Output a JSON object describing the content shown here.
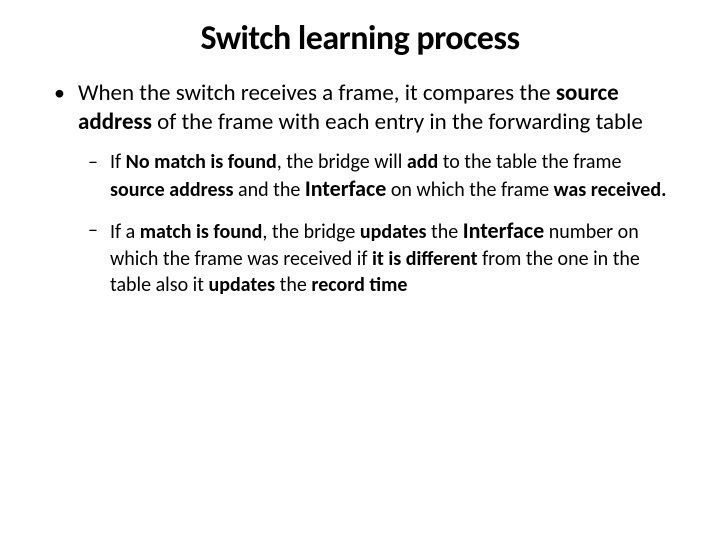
{
  "slide": {
    "title": "Switch learning process",
    "bullet_main_html": "When the switch receives a frame, it compares the <b>source address</b> of the frame with each entry in the forwarding table",
    "sub1_html": "If <b>No match is found</b>, the bridge will <b>add</b> to the table the frame <b>source address</b> and the <b class=\"ifc\">Interface</b> on which the frame <b>was received.</b>",
    "sub2_html": "If a <b>match is found</b>, the bridge <b>updates</b> the <b class=\"ifc\">Interface</b> number on which the frame was received if <b>it is different</b> from the one in the table also it <b>updates</b> the <b>record time</b>"
  },
  "style": {
    "background_color": "#ffffff",
    "text_color": "#000000",
    "title_fontsize": 34,
    "title_weight": 700,
    "body_l1_fontsize": 23,
    "body_l2_fontsize": 20,
    "interface_fontsize": 22,
    "font_family": "Calibri, Arial, sans-serif",
    "slide_width": 720,
    "slide_height": 540,
    "bullet_l1_marker": "•",
    "bullet_l2_marker": "–"
  }
}
